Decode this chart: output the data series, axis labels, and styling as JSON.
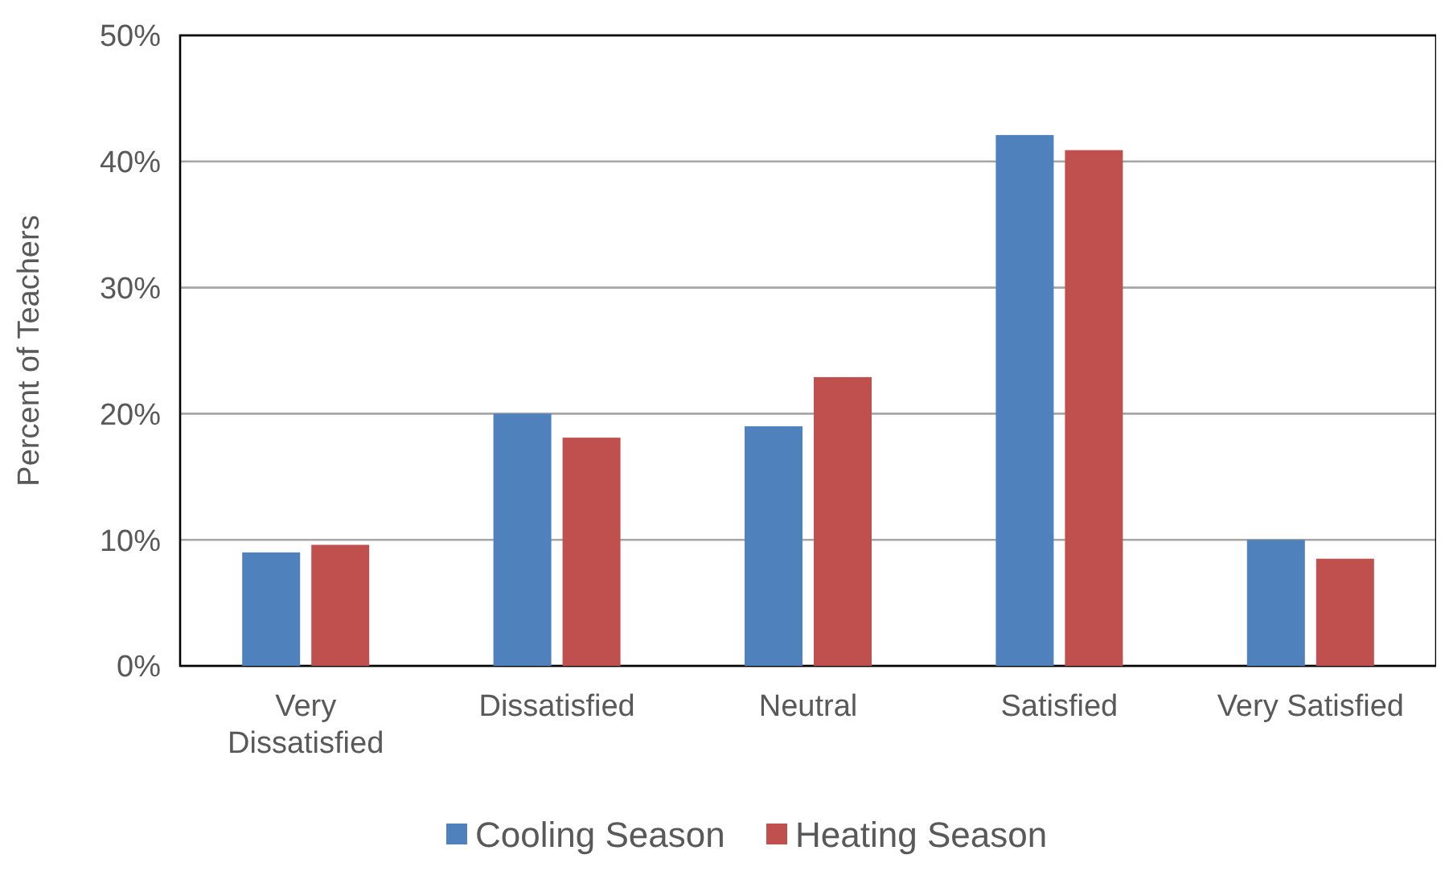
{
  "chart_data": {
    "type": "bar",
    "ylabel": "Percent of Teachers",
    "categories": [
      "Very Dissatisfied",
      "Dissatisfied",
      "Neutral",
      "Satisfied",
      "Very Satisfied"
    ],
    "series": [
      {
        "name": "Cooling Season",
        "color": "#4f81bd",
        "values": [
          9.0,
          20.0,
          19.0,
          42.1,
          10.0
        ]
      },
      {
        "name": "Heating Season",
        "color": "#c0504d",
        "values": [
          9.6,
          18.1,
          22.9,
          40.9,
          8.5
        ]
      }
    ],
    "ylim": [
      0,
      50
    ],
    "yticks": [
      {
        "value": 0,
        "label": "0%"
      },
      {
        "value": 10,
        "label": "10%"
      },
      {
        "value": 20,
        "label": "20%"
      },
      {
        "value": 30,
        "label": "30%"
      },
      {
        "value": 40,
        "label": "40%"
      },
      {
        "value": 50,
        "label": "50%"
      }
    ],
    "grid": "y",
    "legend": "bottom"
  }
}
